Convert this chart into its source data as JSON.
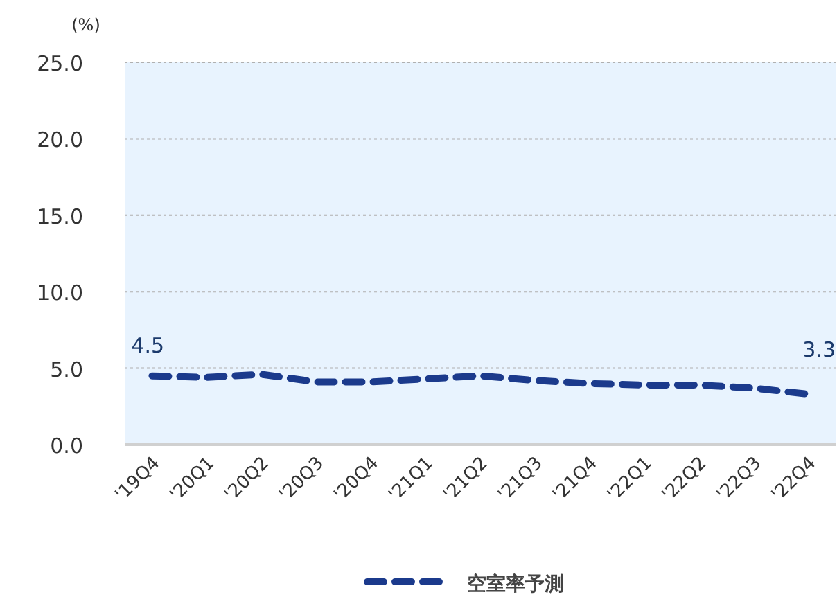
{
  "chart_data": {
    "type": "line",
    "ylabel": "(%)",
    "categories": [
      "'19Q4",
      "'20Q1",
      "'20Q2",
      "'20Q3",
      "'20Q4",
      "'21Q1",
      "'21Q2",
      "'21Q3",
      "'21Q4",
      "'22Q1",
      "'22Q2",
      "'22Q3",
      "'22Q4"
    ],
    "series": [
      {
        "name": "空室率予測",
        "color": "#1b3a8c",
        "line_style": "dashed",
        "values": [
          4.5,
          4.4,
          4.6,
          4.1,
          4.1,
          4.3,
          4.5,
          4.2,
          4.0,
          3.9,
          3.9,
          3.7,
          3.3
        ],
        "value_labels": [
          "4.5",
          null,
          null,
          null,
          null,
          null,
          null,
          null,
          null,
          null,
          null,
          null,
          "3.3"
        ]
      }
    ],
    "ylim": [
      0,
      25
    ],
    "yticks": [
      {
        "value": 0,
        "label": "0.0"
      },
      {
        "value": 5,
        "label": "5.0"
      },
      {
        "value": 10,
        "label": "10.0"
      },
      {
        "value": 15,
        "label": "15.0"
      },
      {
        "value": 20,
        "label": "20.0"
      },
      {
        "value": 25,
        "label": "25.0"
      }
    ],
    "grid": "y",
    "legend": "bottom",
    "marker": "none"
  }
}
